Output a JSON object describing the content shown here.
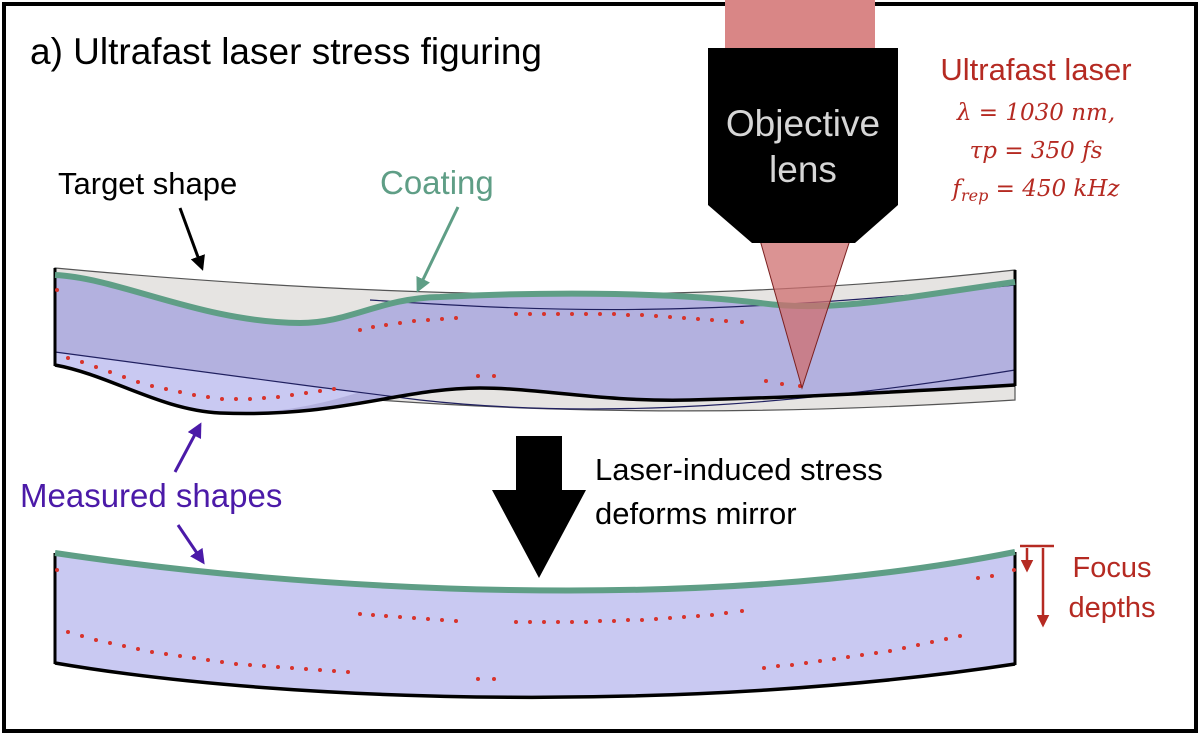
{
  "panel_title": "a) Ultrafast laser stress figuring",
  "objective": {
    "line1": "Objective",
    "line2": "lens"
  },
  "laser": {
    "title": "Ultrafast laser",
    "param1": "λ = 1030 nm,",
    "param2": "τp = 350 fs",
    "param3_sym": "f",
    "param3_sub": "rep",
    "param3_rest": " = 450 kHz"
  },
  "labels": {
    "target_shape": "Target shape",
    "coating": "Coating",
    "measured_shapes": "Measured shapes",
    "stress_line1": "Laser-induced stress",
    "stress_line2": "deforms mirror",
    "focus_line1": "Focus",
    "focus_line2": "depths"
  },
  "colors": {
    "frame": "#000000",
    "mirror_fill": "#c9c9f2",
    "coating": "#5f9e86",
    "target_fill": "#e6e4e2",
    "laser_red": "#b52a22",
    "dots": "#d8332b",
    "measured_purple": "#4b1aa8",
    "beam": "#cf6f6f"
  }
}
